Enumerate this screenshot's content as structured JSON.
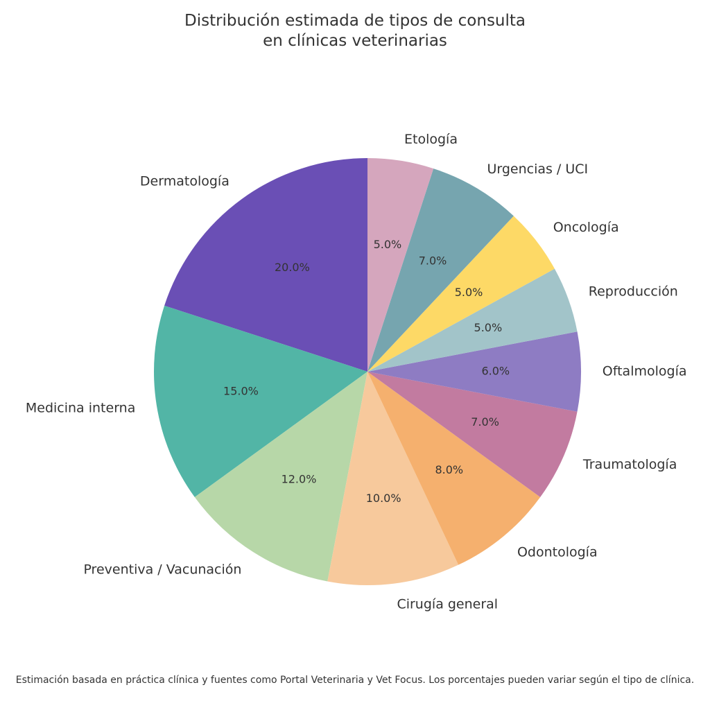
{
  "chart_data": {
    "type": "pie",
    "title": "Distribución estimada de tipos de consulta\nen clínicas veterinarias",
    "categories": [
      "Dermatología",
      "Medicina interna",
      "Preventiva / Vacunación",
      "Cirugía general",
      "Odontología",
      "Traumatología",
      "Oftalmología",
      "Reproducción",
      "Oncología",
      "Urgencias / UCI",
      "Etología"
    ],
    "values": [
      20,
      15,
      12,
      10,
      8,
      7,
      6,
      5,
      5,
      7,
      5
    ],
    "value_labels": [
      "20.0%",
      "15.0%",
      "12.0%",
      "10.0%",
      "8.0%",
      "7.0%",
      "6.0%",
      "5.0%",
      "5.0%",
      "7.0%",
      "5.0%"
    ],
    "colors": [
      "#6a4fb5",
      "#52b5a6",
      "#b7d7a8",
      "#f7c99c",
      "#f5b06e",
      "#c27ba0",
      "#8e7cc3",
      "#a2c4c9",
      "#fdd966",
      "#76a5af",
      "#d5a6bd"
    ],
    "footnote": "Estimación basada en práctica clínica y fuentes como Portal Veterinaria y Vet Focus. Los porcentajes pueden variar según el tipo de clínica."
  }
}
